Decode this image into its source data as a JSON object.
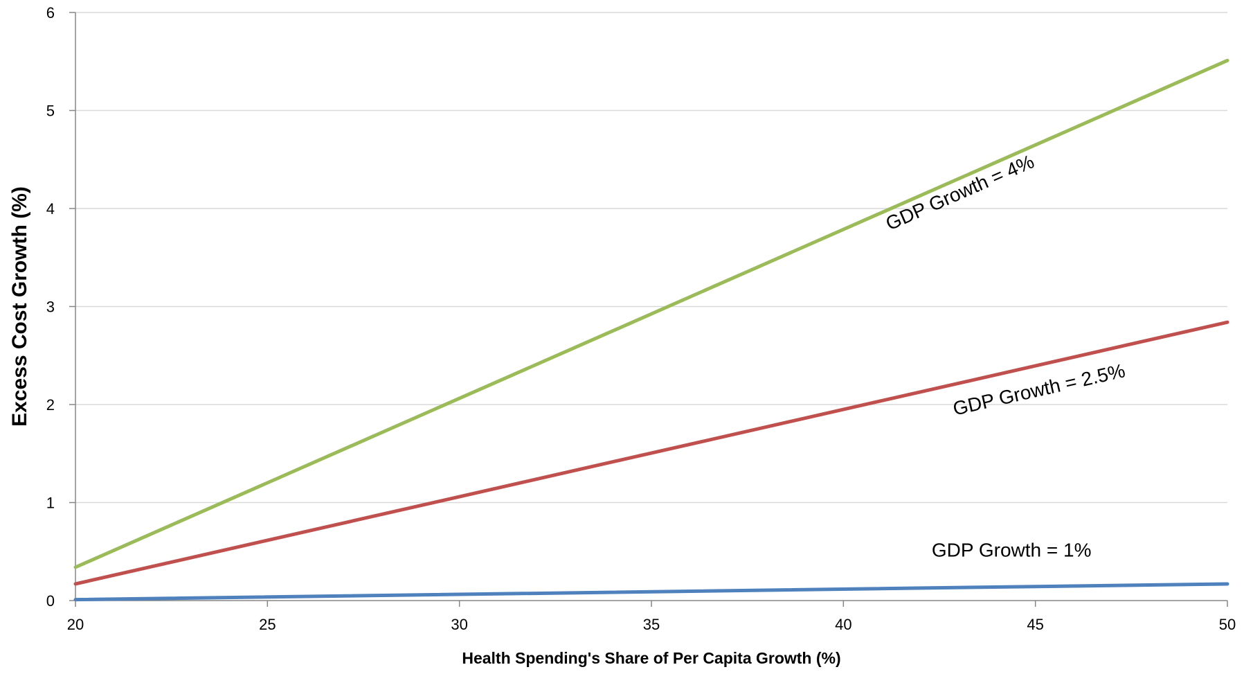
{
  "chart_data": {
    "type": "line",
    "xlabel": "Health Spending's Share of Per Capita Growth (%)",
    "ylabel": "Excess Cost Growth (%)",
    "xlim": [
      20,
      50
    ],
    "ylim": [
      0,
      6
    ],
    "x_ticks": [
      "20",
      "25",
      "30",
      "35",
      "40",
      "45",
      "50"
    ],
    "y_ticks": [
      "0",
      "1",
      "2",
      "3",
      "4",
      "5",
      "6"
    ],
    "grid": "horizontal",
    "series": [
      {
        "name": "GDP Growth = 4%",
        "color": "#9BBB59",
        "x": [
          20,
          50
        ],
        "y": [
          0.34,
          5.51
        ]
      },
      {
        "name": "GDP Growth = 2.5%",
        "color": "#C0504D",
        "x": [
          20,
          50
        ],
        "y": [
          0.17,
          2.84
        ]
      },
      {
        "name": "GDP Growth = 1%",
        "color": "#4F81BD",
        "x": [
          20,
          50
        ],
        "y": [
          0.01,
          0.17
        ]
      }
    ]
  }
}
